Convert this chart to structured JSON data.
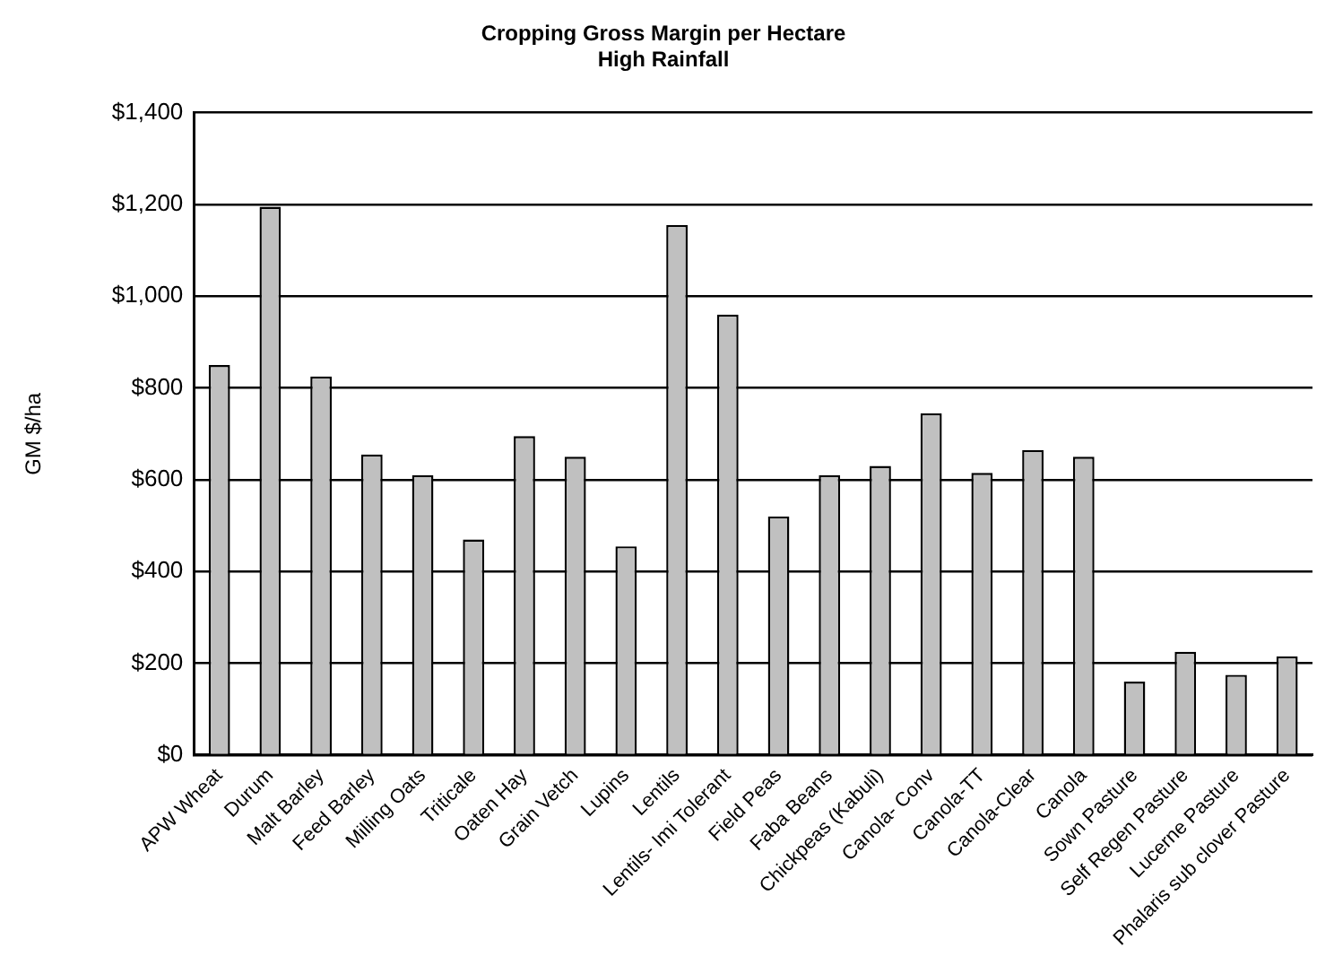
{
  "chart_data": {
    "type": "bar",
    "title": [
      "Cropping Gross Margin per Hectare",
      "High Rainfall"
    ],
    "ylabel": "GM $/ha",
    "categories": [
      "APW Wheat",
      "Durum",
      "Malt Barley",
      "Feed Barley",
      "Milling Oats",
      "Triticale",
      "Oaten Hay",
      "Grain Vetch",
      "Lupins",
      "Lentils",
      "Lentils- Imi Tolerant",
      "Field Peas",
      "Faba Beans",
      "Chickpeas (Kabuli)",
      "Canola- Conv",
      "Canola-TT",
      "Canola-Clear",
      "Canola",
      "Sown Pasture",
      "Self Regen Pasture",
      "Lucerne Pasture",
      "Phalaris sub clover Pasture"
    ],
    "values": [
      850,
      1195,
      825,
      655,
      610,
      470,
      695,
      650,
      455,
      1155,
      960,
      520,
      610,
      630,
      745,
      615,
      665,
      650,
      160,
      225,
      175,
      215
    ],
    "color": "#c0c0c0",
    "ylim": [
      0,
      1400
    ],
    "yticks": [
      {
        "value": 0,
        "label": "$0"
      },
      {
        "value": 200,
        "label": "$200"
      },
      {
        "value": 400,
        "label": "$400"
      },
      {
        "value": 600,
        "label": "$600"
      },
      {
        "value": 800,
        "label": "$800"
      },
      {
        "value": 1000,
        "label": "$1,000"
      },
      {
        "value": 1200,
        "label": "$1,200"
      },
      {
        "value": 1400,
        "label": "$1,400"
      }
    ],
    "grid": "y",
    "legend": false
  }
}
